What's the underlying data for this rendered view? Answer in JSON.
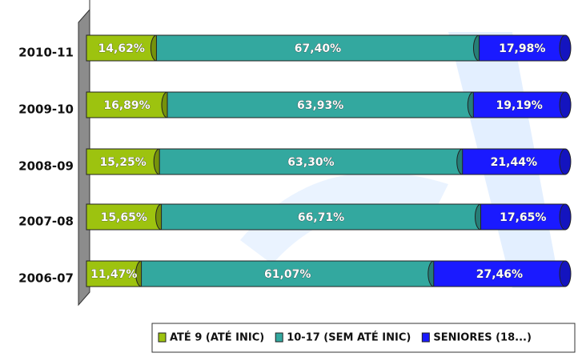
{
  "chart_data": {
    "type": "stacked-bar-horizontal",
    "categories": [
      "2010-11",
      "2009-10",
      "2008-09",
      "2007-08",
      "2006-07"
    ],
    "xlim": [
      0,
      100
    ],
    "legend": "bottom",
    "series": [
      {
        "name": "ATÉ 9 (ATÉ INIC)",
        "color": "#9dc30f",
        "values": [
          14.62,
          16.89,
          15.25,
          15.65,
          11.47
        ],
        "value_labels": [
          "14,62%",
          "16,89%",
          "15,25%",
          "15,65%",
          "11,47%"
        ]
      },
      {
        "name": "10-17 (SEM ATÉ INIC)",
        "color": "#33a89f",
        "values": [
          67.4,
          63.93,
          63.3,
          66.71,
          61.07
        ],
        "value_labels": [
          "67,40%",
          "63,93%",
          "63,30%",
          "66,71%",
          "61,07%"
        ]
      },
      {
        "name": "SENIORES (18...)",
        "color": "#1a1aff",
        "values": [
          17.98,
          19.19,
          21.44,
          17.65,
          27.46
        ],
        "value_labels": [
          "17,98%",
          "19,19%",
          "21,44%",
          "17,65%",
          "27,46%"
        ]
      }
    ]
  }
}
